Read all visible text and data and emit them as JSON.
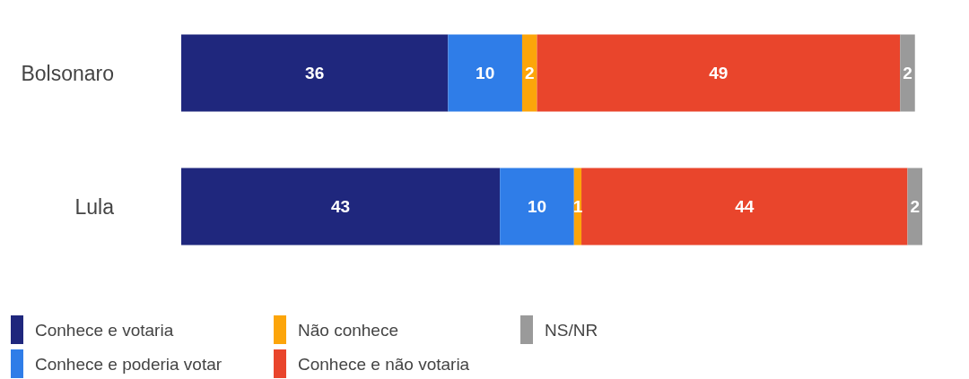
{
  "chart_data": {
    "type": "bar",
    "orientation": "horizontal",
    "stacked": true,
    "data_labels": true,
    "legend": "bottom",
    "categories": [
      "Bolsonaro",
      "Lula"
    ],
    "series": [
      {
        "name": "Conhece e votaria",
        "color": "#1f277d",
        "values": [
          36,
          43
        ]
      },
      {
        "name": "Conhece e poderia votar",
        "color": "#2f7de8",
        "values": [
          10,
          10
        ]
      },
      {
        "name": "Não conhece",
        "color": "#fca50a",
        "values": [
          2,
          1
        ]
      },
      {
        "name": "Conhece e não votaria",
        "color": "#e9452c",
        "values": [
          49,
          44
        ]
      },
      {
        "name": "NS/NR",
        "color": "#9a9a9a",
        "values": [
          2,
          2
        ]
      }
    ]
  }
}
